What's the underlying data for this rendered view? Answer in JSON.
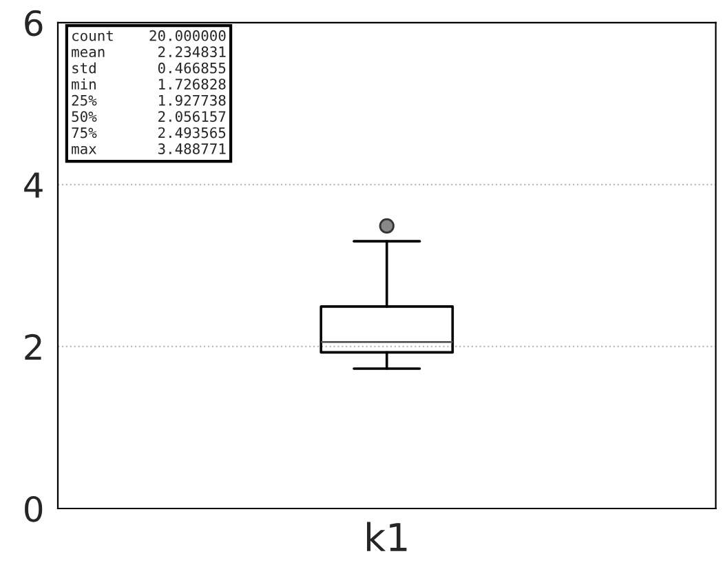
{
  "chart_data": {
    "type": "box",
    "categories": [
      "k1"
    ],
    "boxes": [
      {
        "low": 1.726828,
        "q1": 1.927738,
        "median": 2.056157,
        "q3": 2.493565,
        "high": 3.3,
        "outliers": [
          3.488771
        ]
      }
    ],
    "ylim": [
      0,
      6
    ],
    "yticks": [
      0,
      2,
      4,
      6
    ],
    "grid": "y",
    "annotations": [
      "count    20.000000\nmean      2.234831\nstd       0.466855\nmin       1.726828\n25%       1.927738\n50%       2.056157\n75%       2.493565\nmax       3.488771"
    ]
  }
}
